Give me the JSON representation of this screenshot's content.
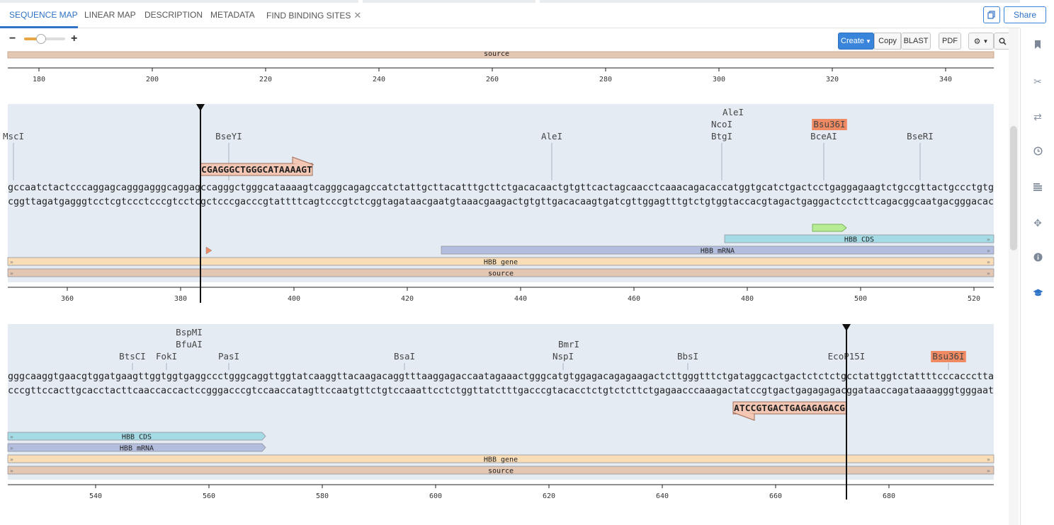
{
  "tabs": [
    {
      "label": "SEQUENCE MAP",
      "active": true
    },
    {
      "label": "LINEAR MAP",
      "active": false
    },
    {
      "label": "DESCRIPTION",
      "active": false
    },
    {
      "label": "METADATA",
      "active": false
    },
    {
      "label": "FIND BINDING SITES",
      "active": false,
      "closable": true
    }
  ],
  "tab_close_glyph": "✕",
  "header": {
    "share_label": "Share",
    "copy_icon": "copy-icon"
  },
  "zoom": {
    "minus": "−",
    "plus": "+",
    "level": 0.42
  },
  "toolbar": {
    "create_label": "Create",
    "copy_label": "Copy",
    "blast_label": "BLAST",
    "pdf_label": "PDF",
    "settings_icon": "gear-icon",
    "search_icon": "search-icon"
  },
  "sidebar_icons": [
    "bookmark-icon",
    "scissors-icon",
    "swap-icon",
    "clock-icon",
    "lines-icon",
    "crosshair-icon",
    "info-icon",
    "graduation-cap-icon"
  ],
  "colors": {
    "selection": "#e4ebf3",
    "enzyme_highlight": "#f08a62",
    "primer_fill": "#f4c7b5",
    "cds": "#a4dbe5",
    "mrna": "#b3bedf",
    "gene": "#f9ddb6",
    "source": "#e3c7b3",
    "green_feature": "#b7ec94",
    "accent": "#2f73c7"
  },
  "rows": [
    {
      "partial": true,
      "source_label": "source",
      "ticks": [
        "180",
        "200",
        "220",
        "240",
        "260",
        "280",
        "300",
        "320",
        "340"
      ],
      "tick_values": [
        180,
        200,
        220,
        240,
        260,
        280,
        300,
        320,
        340
      ]
    },
    {
      "start": 349,
      "ticks": [
        "360",
        "380",
        "400",
        "420",
        "440",
        "460",
        "480",
        "500",
        "520"
      ],
      "tick_values": [
        360,
        380,
        400,
        420,
        440,
        460,
        480,
        500,
        520
      ],
      "top_strand": "gccaatctactcccaggagcagggagggcaggagccagggctgggcataaaagtcagggcagagccatctattgcttacatttgcttctgacacaactgtgttcactagcaacctcaaacagacaccatggtgcatctgactcctgaggagaagtctgccgttactgccctgtg",
      "bottom_strand": "cggttagatgagggtcctcgtccctcccgtcctcgctcccgacccgtattttcagtcccgtctcggtagataacgaatgtaaacgaagactgtgttgacacaagtgatcgttggagtttgtctgtggtaccacgtagactgaggactcctcttcagacggcaatgacgggacac",
      "enzymes": [
        {
          "name": "MscI",
          "pos": 350,
          "level": 0
        },
        {
          "name": "BseYI",
          "pos": 388,
          "level": 0
        },
        {
          "name": "AleI",
          "pos": 445,
          "level": 0
        },
        {
          "name": "BtgI",
          "pos": 475,
          "level": 0
        },
        {
          "name": "NcoI",
          "pos": 475,
          "level": 1
        },
        {
          "name": "AleI",
          "pos": 477,
          "level": 2
        },
        {
          "name": "BceAI",
          "pos": 493,
          "level": 0
        },
        {
          "name": "Bsu36I",
          "pos": 494,
          "level": 1,
          "highlight": true
        },
        {
          "name": "BseRI",
          "pos": 510,
          "level": 0
        }
      ],
      "primer": {
        "seq": "CGAGGGCTGGGCATAAAAGT",
        "start": 383,
        "end": 403,
        "direction": "forward",
        "above": true
      },
      "features": [
        {
          "label": "",
          "type": "marker",
          "pos": 384,
          "lane": 1,
          "color": "#f08a62"
        },
        {
          "label": "",
          "type": "marker",
          "pos": 496,
          "lane": -1,
          "color": "#b3bedf"
        },
        {
          "label": "",
          "type": "green",
          "start": 491,
          "end": 497,
          "lane": -1
        },
        {
          "label": "HBB CDS",
          "type": "cds",
          "start": 475.5,
          "end": 524,
          "lane": 0
        },
        {
          "label": "HBB mRNA",
          "type": "mrna",
          "start": 425.5,
          "end": 524,
          "lane": 1
        },
        {
          "label": "HBB gene",
          "type": "gene",
          "start": 349,
          "end": 524,
          "lane": 2
        },
        {
          "label": "source",
          "type": "source",
          "start": 349,
          "end": 524,
          "lane": 3
        }
      ],
      "cursor": 382.5
    },
    {
      "start": 524,
      "ticks": [
        "540",
        "560",
        "580",
        "600",
        "620",
        "640",
        "660",
        "680"
      ],
      "tick_values": [
        540,
        560,
        580,
        600,
        620,
        640,
        660,
        680
      ],
      "top_strand": "gggcaaggtgaacgtggatgaagttggtggtgaggccctgggcaggttggtatcaaggttacaagacaggtttaaggagaccaatagaaactgggcatgtggagacagagaagactcttgggtttctgataggcactgactctctctgcctattggtctattttcccaccctta",
      "bottom_strand": "cccgttccacttgcacctacttcaaccaccactccgggacccgtccaaccatagttccaatgttctgtccaaattcctctggttatctttgacccgtacacctctgtctcttctgagaacccaaagactatccgtgactgagagagacggataaccagataaaagggtgggaat",
      "enzymes": [
        {
          "name": "BtsCI",
          "pos": 546,
          "level": 0
        },
        {
          "name": "FokI",
          "pos": 552,
          "level": 0
        },
        {
          "name": "BfuAI",
          "pos": 556,
          "level": 1
        },
        {
          "name": "BspMI",
          "pos": 556,
          "level": 2
        },
        {
          "name": "PasI",
          "pos": 563,
          "level": 0
        },
        {
          "name": "BsaI",
          "pos": 594,
          "level": 0
        },
        {
          "name": "NspI",
          "pos": 622,
          "level": 0
        },
        {
          "name": "BmrI",
          "pos": 623,
          "level": 1
        },
        {
          "name": "BbsI",
          "pos": 644,
          "level": 0
        },
        {
          "name": "EcoP15I",
          "pos": 672,
          "level": 0
        },
        {
          "name": "Bsu36I",
          "pos": 690,
          "level": 0,
          "highlight": true
        }
      ],
      "primer": {
        "seq": "ATCCGTGACTGAGAGAGACG",
        "start": 652,
        "end": 672,
        "direction": "reverse",
        "above": false
      },
      "features": [
        {
          "label": "HBB CDS",
          "type": "cds",
          "start": 524,
          "end": 569.5,
          "lane": 0
        },
        {
          "label": "HBB mRNA",
          "type": "mrna",
          "start": 524,
          "end": 569.5,
          "lane": 1
        },
        {
          "label": "HBB gene",
          "type": "gene",
          "start": 524,
          "end": 699,
          "lane": 2
        },
        {
          "label": "source",
          "type": "source",
          "start": 524,
          "end": 699,
          "lane": 3
        }
      ],
      "cursor": 671.5
    }
  ]
}
